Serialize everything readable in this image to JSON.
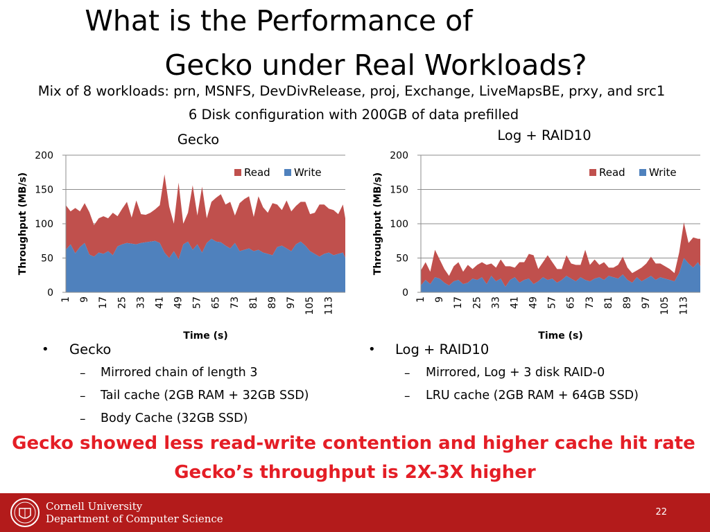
{
  "slide": {
    "title_line1": "What is the Performance of",
    "title_line2": "Gecko under Real Workloads?",
    "subtitle_line1": "Mix of 8 workloads: prn, MSNFS, DevDivRelease, proj, Exchange, LiveMapsBE, prxy, and src1",
    "subtitle_line2": "6 Disk configuration with 200GB of data prefilled",
    "left_bullets": {
      "heading": "Gecko",
      "items": [
        "Mirrored chain of length 3",
        "Tail cache  (2GB RAM + 32GB SSD)",
        "Body Cache (32GB SSD)"
      ]
    },
    "right_bullets": {
      "heading": "Log + RAID10",
      "items": [
        "Mirrored, Log + 3 disk RAID-0",
        "LRU cache (2GB RAM + 64GB SSD)"
      ]
    },
    "conclusion_line1": "Gecko showed less read-write contention and higher cache hit rate",
    "conclusion_line2": "Gecko’s throughput is 2X-3X higher",
    "footer": {
      "university_line1": "Cornell University",
      "university_line2": "Department of Computer Science",
      "page_number": "22"
    },
    "colors": {
      "read": "#c0504d",
      "write": "#4f81bd",
      "accent_red": "#e41e26",
      "footer_bg": "#b31b1b"
    }
  },
  "chart_data": [
    {
      "type": "area",
      "stacked": true,
      "title": "Gecko",
      "xlabel": "Time (s)",
      "ylabel": "Throughput (MB/s)",
      "ylim": [
        0,
        200
      ],
      "yticks": [
        0,
        50,
        100,
        150,
        200
      ],
      "xticks": [
        1,
        9,
        17,
        25,
        33,
        41,
        49,
        57,
        65,
        73,
        81,
        89,
        97,
        105,
        113
      ],
      "xlim": [
        1,
        120
      ],
      "legend": "top-right",
      "series": [
        {
          "name": "Write",
          "x": [
            1,
            3,
            5,
            7,
            9,
            11,
            13,
            15,
            17,
            19,
            21,
            23,
            25,
            27,
            29,
            31,
            33,
            35,
            37,
            39,
            41,
            43,
            45,
            47,
            49,
            51,
            53,
            55,
            57,
            59,
            61,
            63,
            65,
            67,
            69,
            71,
            73,
            75,
            77,
            79,
            81,
            83,
            85,
            87,
            89,
            91,
            93,
            95,
            97,
            99,
            101,
            103,
            105,
            107,
            109,
            111,
            113,
            115,
            117,
            119,
            120
          ],
          "values": [
            62,
            70,
            57,
            66,
            72,
            55,
            52,
            58,
            56,
            60,
            54,
            67,
            70,
            72,
            71,
            70,
            72,
            73,
            74,
            75,
            72,
            58,
            50,
            60,
            48,
            70,
            74,
            62,
            70,
            58,
            72,
            78,
            74,
            73,
            68,
            64,
            72,
            60,
            62,
            64,
            60,
            62,
            58,
            56,
            54,
            66,
            68,
            64,
            60,
            70,
            74,
            68,
            60,
            56,
            52,
            56,
            58,
            54,
            56,
            58,
            50
          ]
        },
        {
          "name": "Read",
          "x": [
            1,
            3,
            5,
            7,
            9,
            11,
            13,
            15,
            17,
            19,
            21,
            23,
            25,
            27,
            29,
            31,
            33,
            35,
            37,
            39,
            41,
            43,
            45,
            47,
            49,
            51,
            53,
            55,
            57,
            59,
            61,
            63,
            65,
            67,
            69,
            71,
            73,
            75,
            77,
            79,
            81,
            83,
            85,
            87,
            89,
            91,
            93,
            95,
            97,
            99,
            101,
            103,
            105,
            107,
            109,
            111,
            113,
            115,
            117,
            119,
            120
          ],
          "values": [
            65,
            48,
            66,
            52,
            58,
            62,
            46,
            50,
            55,
            48,
            62,
            44,
            52,
            60,
            38,
            64,
            42,
            40,
            42,
            46,
            55,
            114,
            75,
            40,
            112,
            30,
            42,
            94,
            42,
            96,
            36,
            54,
            64,
            70,
            60,
            68,
            40,
            70,
            74,
            76,
            50,
            78,
            66,
            60,
            76,
            62,
            52,
            70,
            58,
            56,
            58,
            64,
            54,
            60,
            76,
            72,
            64,
            66,
            58,
            70,
            58
          ]
        }
      ]
    },
    {
      "type": "area",
      "stacked": true,
      "title": "Log + RAID10",
      "xlabel": "Time (s)",
      "ylabel": "Throughput (MB/s)",
      "ylim": [
        0,
        200
      ],
      "yticks": [
        0,
        50,
        100,
        150,
        200
      ],
      "xticks": [
        1,
        9,
        17,
        25,
        33,
        41,
        49,
        57,
        65,
        73,
        81,
        89,
        97,
        105,
        113
      ],
      "xlim": [
        1,
        120
      ],
      "legend": "top-right",
      "series": [
        {
          "name": "Write",
          "x": [
            1,
            3,
            5,
            7,
            9,
            11,
            13,
            15,
            17,
            19,
            21,
            23,
            25,
            27,
            29,
            31,
            33,
            35,
            37,
            39,
            41,
            43,
            45,
            47,
            49,
            51,
            53,
            55,
            57,
            59,
            61,
            63,
            65,
            67,
            69,
            71,
            73,
            75,
            77,
            79,
            81,
            83,
            85,
            87,
            89,
            91,
            93,
            95,
            97,
            99,
            101,
            103,
            105,
            107,
            109,
            111,
            113,
            115,
            117,
            119,
            120
          ],
          "values": [
            10,
            18,
            12,
            22,
            20,
            14,
            10,
            16,
            18,
            12,
            14,
            20,
            18,
            22,
            12,
            24,
            16,
            20,
            8,
            18,
            22,
            14,
            18,
            20,
            12,
            16,
            22,
            18,
            20,
            14,
            18,
            24,
            20,
            16,
            22,
            18,
            16,
            20,
            22,
            18,
            24,
            22,
            20,
            26,
            18,
            14,
            22,
            16,
            20,
            24,
            18,
            22,
            20,
            18,
            16,
            28,
            50,
            42,
            36,
            44,
            38
          ]
        },
        {
          "name": "Read",
          "x": [
            1,
            3,
            5,
            7,
            9,
            11,
            13,
            15,
            17,
            19,
            21,
            23,
            25,
            27,
            29,
            31,
            33,
            35,
            37,
            39,
            41,
            43,
            45,
            47,
            49,
            51,
            53,
            55,
            57,
            59,
            61,
            63,
            65,
            67,
            69,
            71,
            73,
            75,
            77,
            79,
            81,
            83,
            85,
            87,
            89,
            91,
            93,
            95,
            97,
            99,
            101,
            103,
            105,
            107,
            109,
            111,
            113,
            115,
            117,
            119,
            120
          ],
          "values": [
            22,
            26,
            18,
            40,
            28,
            20,
            14,
            22,
            26,
            18,
            26,
            14,
            22,
            22,
            28,
            18,
            20,
            28,
            30,
            20,
            14,
            30,
            26,
            36,
            42,
            18,
            22,
            36,
            24,
            20,
            16,
            30,
            22,
            24,
            18,
            44,
            24,
            28,
            18,
            26,
            12,
            14,
            20,
            26,
            18,
            14,
            10,
            20,
            22,
            28,
            24,
            20,
            18,
            16,
            12,
            30,
            52,
            30,
            44,
            34,
            40
          ]
        }
      ]
    }
  ]
}
